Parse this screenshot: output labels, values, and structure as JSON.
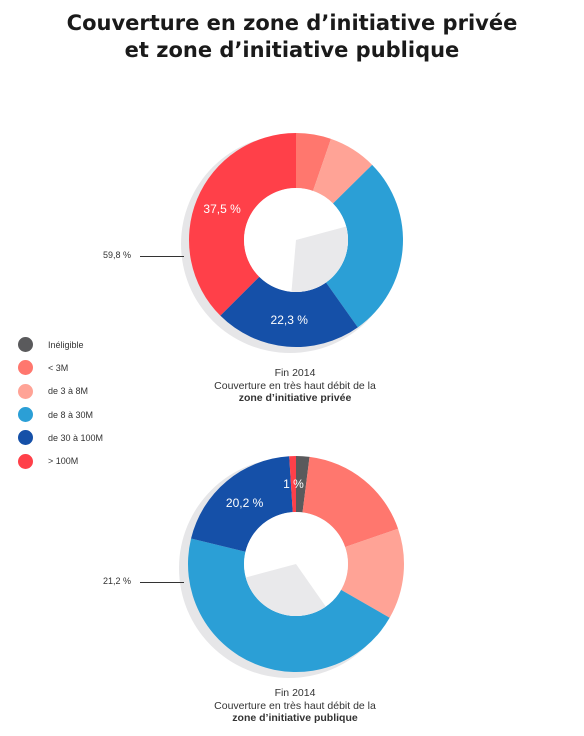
{
  "title": {
    "line1": "Couverture en zone d’initiative privée",
    "line2": "et zone d’initiative publique"
  },
  "legend": [
    {
      "key": "ineligible",
      "label": "Inéligible",
      "color": "#5a5a5c"
    },
    {
      "key": "lt3",
      "label": "< 3M",
      "color": "#ff776e"
    },
    {
      "key": "3to8",
      "label": "de 3 à 8M",
      "color": "#ffa396"
    },
    {
      "key": "8to30",
      "label": "de 8 à 30M",
      "color": "#2b9fd6"
    },
    {
      "key": "30to100",
      "label": "de 30 à 100M",
      "color": "#1550a8"
    },
    {
      "key": "gt100",
      "label": "> 100M",
      "color": "#ff4049"
    }
  ],
  "chart_data": [
    {
      "type": "pie",
      "variant": "donut",
      "caption": {
        "line1": "Fin 2014",
        "line2": "Couverture en très haut débit de la",
        "line3": "zone d’initiative privée"
      },
      "side_label": "59,8 %",
      "slices": [
        {
          "key": "ineligible",
          "value": 0,
          "label": ""
        },
        {
          "key": "lt3",
          "value": 5.3,
          "label": ""
        },
        {
          "key": "3to8",
          "value": 7.3,
          "label": ""
        },
        {
          "key": "8to30",
          "value": 27.6,
          "label": ""
        },
        {
          "key": "30to100",
          "value": 22.3,
          "label": "22,3 %"
        },
        {
          "key": "gt100",
          "value": 37.5,
          "label": "37,5 %"
        }
      ]
    },
    {
      "type": "pie",
      "variant": "donut",
      "caption": {
        "line1": "Fin 2014",
        "line2": "Couverture en très haut débit de la",
        "line3": "zone d’initiative publique"
      },
      "side_label": "21,2 %",
      "slices": [
        {
          "key": "ineligible",
          "value": 2,
          "label": ""
        },
        {
          "key": "lt3",
          "value": 17.7,
          "label": ""
        },
        {
          "key": "3to8",
          "value": 13.6,
          "label": ""
        },
        {
          "key": "8to30",
          "value": 45.5,
          "label": ""
        },
        {
          "key": "30to100",
          "value": 20.2,
          "label": "20,2 %"
        },
        {
          "key": "gt100",
          "value": 1,
          "label": "1 %"
        }
      ]
    }
  ]
}
